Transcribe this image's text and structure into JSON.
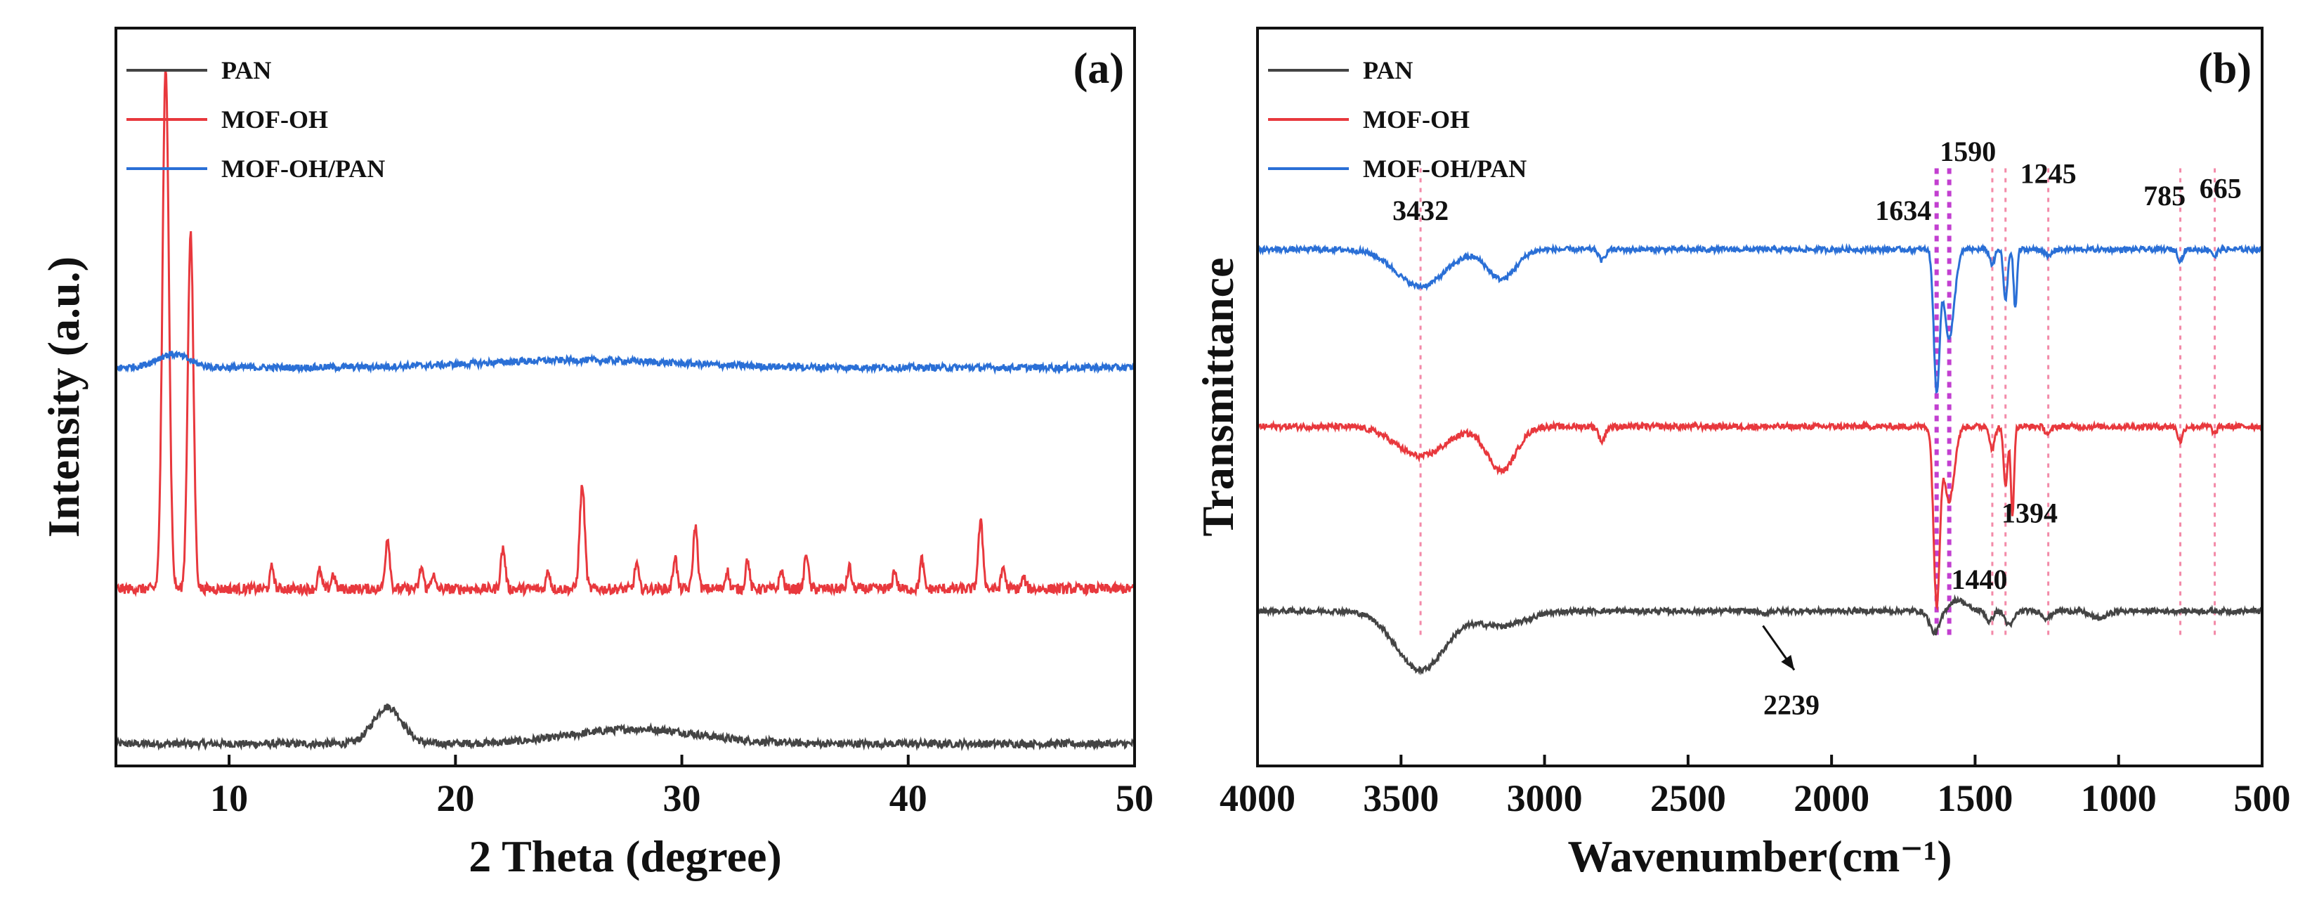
{
  "chart_data": [
    {
      "panel": "a",
      "type": "line",
      "panel_label": "(a)",
      "xlabel": "2 Theta (degree)",
      "ylabel": "Intensity (a.u.)",
      "xlim": [
        5,
        50
      ],
      "xticks": [
        10,
        20,
        30,
        40,
        50
      ],
      "ylim": [
        0,
        100
      ],
      "y_ticks_visible": false,
      "legend": [
        "PAN",
        "MOF-OH",
        "MOF-OH/PAN"
      ],
      "series": [
        {
          "name": "PAN",
          "color": "#444444",
          "baseline": 3,
          "noise": 0.5,
          "peaks": [
            [
              17.0,
              5,
              0.9
            ],
            [
              28.0,
              2,
              4.0
            ]
          ]
        },
        {
          "name": "MOF-OH",
          "color": "#e8383d",
          "baseline": 24,
          "noise": 0.7,
          "peaks": [
            [
              7.2,
              71,
              0.2
            ],
            [
              8.3,
              48,
              0.18
            ],
            [
              11.9,
              3,
              0.12
            ],
            [
              14.0,
              2.5,
              0.12
            ],
            [
              14.6,
              2.0,
              0.12
            ],
            [
              17.0,
              7,
              0.14
            ],
            [
              18.5,
              3,
              0.12
            ],
            [
              19.0,
              2,
              0.12
            ],
            [
              22.1,
              5.5,
              0.14
            ],
            [
              24.1,
              2.5,
              0.12
            ],
            [
              25.6,
              14,
              0.16
            ],
            [
              28.0,
              3.5,
              0.12
            ],
            [
              29.7,
              4.5,
              0.12
            ],
            [
              30.6,
              8.5,
              0.14
            ],
            [
              32.0,
              2.5,
              0.12
            ],
            [
              32.9,
              4,
              0.12
            ],
            [
              34.4,
              2.5,
              0.12
            ],
            [
              35.5,
              5,
              0.12
            ],
            [
              37.4,
              3,
              0.12
            ],
            [
              39.4,
              2.5,
              0.12
            ],
            [
              40.6,
              4,
              0.12
            ],
            [
              43.2,
              9,
              0.15
            ],
            [
              44.2,
              3,
              0.12
            ],
            [
              45.1,
              1.5,
              0.12
            ]
          ]
        },
        {
          "name": "MOF-OH/PAN",
          "color": "#2a6fd6",
          "baseline": 54,
          "noise": 0.45,
          "peaks": [
            [
              7.5,
              1.8,
              1.0
            ],
            [
              25.5,
              1.0,
              6.0
            ]
          ]
        }
      ]
    },
    {
      "panel": "b",
      "type": "line",
      "panel_label": "(b)",
      "xlabel": "Wavenumber(cm⁻¹)",
      "ylabel": "Transmittance",
      "xlim": [
        4000,
        500
      ],
      "xticks": [
        4000,
        3500,
        3000,
        2500,
        2000,
        1500,
        1000,
        500
      ],
      "ylim": [
        0,
        100
      ],
      "y_ticks_visible": false,
      "legend": [
        "PAN",
        "MOF-OH",
        "MOF-OH/PAN"
      ],
      "annotations": [
        {
          "text": "3432",
          "x": 3432,
          "y": 74
        },
        {
          "text": "1634",
          "x": 1750,
          "y": 74
        },
        {
          "text": "1590",
          "x": 1525,
          "y": 82
        },
        {
          "text": "1245",
          "x": 1245,
          "y": 79
        },
        {
          "text": "785",
          "x": 840,
          "y": 76
        },
        {
          "text": "665",
          "x": 645,
          "y": 77
        },
        {
          "text": "1394",
          "x": 1310,
          "y": 33
        },
        {
          "text": "1440",
          "x": 1485,
          "y": 24
        },
        {
          "text": "2239",
          "x": 2140,
          "y": 7
        }
      ],
      "reference_lines_cm-1": [
        3432,
        1634,
        1590,
        1440,
        1394,
        1245,
        785,
        665
      ],
      "arrow": {
        "from": [
          2239,
          19
        ],
        "to": [
          2130,
          13
        ]
      },
      "series": [
        {
          "name": "PAN",
          "color": "#444444",
          "baseline": 21,
          "noise": 0.35,
          "bands": [
            [
              3432,
              -8,
              120
            ],
            [
              3150,
              -2,
              120
            ],
            [
              2239,
              -0.5,
              15
            ],
            [
              1640,
              -3,
              25
            ],
            [
              1560,
              1.5,
              40
            ],
            [
              1450,
              -1.5,
              15
            ],
            [
              1380,
              -2,
              20
            ],
            [
              1250,
              -1,
              20
            ],
            [
              1070,
              -1.0,
              40
            ]
          ]
        },
        {
          "name": "MOF-OH",
          "color": "#e8383d",
          "baseline": 46,
          "noise": 0.4,
          "bands": [
            [
              3432,
              -4,
              120
            ],
            [
              3150,
              -6,
              70
            ],
            [
              2800,
              -2,
              15
            ],
            [
              1634,
              -24,
              15
            ],
            [
              1590,
              -10,
              25
            ],
            [
              1440,
              -3,
              12
            ],
            [
              1394,
              -8,
              10
            ],
            [
              1370,
              -12,
              8
            ],
            [
              1245,
              -1,
              15
            ],
            [
              785,
              -2,
              12
            ],
            [
              665,
              -1,
              10
            ]
          ]
        },
        {
          "name": "MOF-OH/PAN",
          "color": "#2a6fd6",
          "baseline": 70,
          "noise": 0.35,
          "bands": [
            [
              3432,
              -5,
              120
            ],
            [
              3150,
              -4,
              70
            ],
            [
              2800,
              -1.5,
              15
            ],
            [
              1634,
              -19,
              14
            ],
            [
              1590,
              -12,
              25
            ],
            [
              1440,
              -2,
              12
            ],
            [
              1394,
              -7,
              10
            ],
            [
              1360,
              -8,
              8
            ],
            [
              1245,
              -1,
              15
            ],
            [
              785,
              -1.5,
              12
            ],
            [
              665,
              -1,
              10
            ]
          ]
        }
      ]
    }
  ]
}
